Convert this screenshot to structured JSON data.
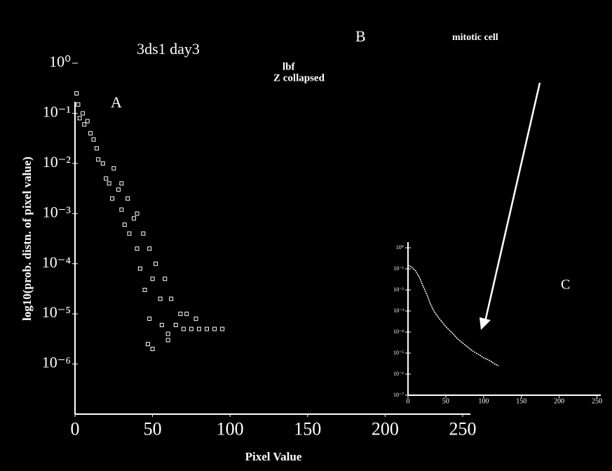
{
  "chart_data": [
    {
      "type": "scatter",
      "title": "3ds1 day3",
      "xlabel": "Pixel Value",
      "ylabel": "log10(prob. distn. of pixel value)",
      "annotations": [
        "A",
        "B",
        "lbf",
        "Z collapsed",
        "mitotic cell"
      ],
      "log_y": true,
      "color": "#ffffff",
      "x": [
        1,
        2,
        3,
        5,
        6,
        8,
        10,
        12,
        14,
        15,
        18,
        20,
        22,
        24,
        25,
        28,
        30,
        30,
        32,
        34,
        35,
        38,
        40,
        40,
        42,
        44,
        45,
        48,
        48,
        50,
        50,
        52,
        55,
        56,
        58,
        60,
        62,
        65,
        68,
        70,
        72,
        75,
        78,
        80,
        85,
        90,
        95,
        47,
        60
      ],
      "values": [
        0.25,
        0.15,
        0.08,
        0.1,
        0.06,
        0.07,
        0.04,
        0.03,
        0.02,
        0.012,
        0.01,
        0.005,
        0.004,
        0.002,
        0.008,
        0.003,
        0.0012,
        0.004,
        0.0006,
        0.002,
        0.0004,
        0.0008,
        0.0002,
        0.001,
        8e-05,
        0.0004,
        3e-05,
        0.0002,
        8e-06,
        2e-06,
        5e-05,
        0.0001,
        2e-05,
        6e-06,
        5e-05,
        4e-06,
        2e-05,
        6e-06,
        1e-05,
        5e-06,
        1e-05,
        5e-06,
        8e-06,
        5e-06,
        5e-06,
        5e-06,
        5e-06,
        2.5e-06,
        3e-06
      ],
      "xlim": [
        0,
        255
      ],
      "xticks": [
        0,
        50,
        100,
        150,
        200,
        250
      ],
      "ylim": [
        1e-07,
        1
      ],
      "yticks": [
        {
          "value": 1,
          "label": "10⁰"
        },
        {
          "value": 0.1,
          "label": "10⁻¹"
        },
        {
          "value": 0.01,
          "label": "10⁻²"
        },
        {
          "value": 0.001,
          "label": "10⁻³"
        },
        {
          "value": 0.0001,
          "label": "10⁻⁴"
        },
        {
          "value": 1e-05,
          "label": "10⁻⁵"
        },
        {
          "value": 1e-06,
          "label": "10⁻⁶"
        }
      ]
    },
    {
      "type": "line",
      "annotations": [
        "C"
      ],
      "log_y": true,
      "color": "#ffffff",
      "x": [
        0,
        5,
        10,
        15,
        20,
        25,
        30,
        35,
        40,
        45,
        50,
        55,
        60,
        65,
        70,
        75,
        80,
        85,
        90,
        95,
        100,
        105,
        110,
        115,
        120
      ],
      "values": [
        0.15,
        0.12,
        0.08,
        0.04,
        0.015,
        0.006,
        0.002,
        0.0009,
        0.0005,
        0.0003,
        0.00018,
        0.00012,
        8e-05,
        5e-05,
        3.5e-05,
        2.5e-05,
        1.8e-05,
        1.3e-05,
        1e-05,
        8e-06,
        6e-06,
        5e-06,
        4e-06,
        3e-06,
        2.5e-06
      ],
      "xlim": [
        0,
        255
      ],
      "xticks": [
        0,
        50,
        100,
        150,
        200,
        250
      ],
      "ylim": [
        1e-07,
        1
      ],
      "yticks": [
        {
          "value": 1,
          "label": "10⁰"
        },
        {
          "value": 0.1,
          "label": "10⁻¹"
        },
        {
          "value": 0.01,
          "label": "10⁻²"
        },
        {
          "value": 0.001,
          "label": "10⁻³"
        },
        {
          "value": 0.0001,
          "label": "10⁻⁴"
        },
        {
          "value": 1e-05,
          "label": "10⁻⁵"
        },
        {
          "value": 1e-06,
          "label": "10⁻⁶"
        },
        {
          "value": 1e-07,
          "label": "10⁻⁷"
        }
      ]
    }
  ]
}
